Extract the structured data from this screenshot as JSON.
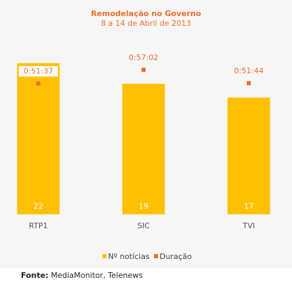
{
  "chart_data": {
    "type": "bar",
    "title": "Remodelação no Governo",
    "subtitle": "8 a 14 de Abril de 2013",
    "categories": [
      "RTP1",
      "SIC",
      "TVI"
    ],
    "series": [
      {
        "name": "Nº notícias",
        "type": "bar",
        "values": [
          22,
          19,
          17
        ],
        "labels": [
          "22",
          "19",
          "17"
        ],
        "color": "#ffc000"
      },
      {
        "name": "Duração",
        "type": "scatter",
        "values": [
          "0:51:37",
          "0:57:02",
          "0:51:44"
        ],
        "values_seconds": [
          3097,
          3422,
          3104
        ],
        "labels": [
          "0:51:37",
          "0:57:02",
          "0:51:44"
        ],
        "color": "#ee6f2d"
      }
    ],
    "ylim_bars": [
      0,
      24.6
    ],
    "ylim_duration_seconds": [
      0,
      4000
    ],
    "grid": false,
    "legend_position": "bottom"
  },
  "source": {
    "label": "Fonte:",
    "text": "MediaMonitor, Telenews"
  }
}
